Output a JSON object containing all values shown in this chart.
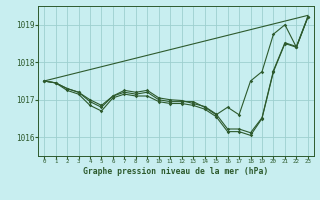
{
  "background_color": "#c8eef0",
  "grid_color": "#9ecfcf",
  "line_color": "#2d5a2d",
  "title": "Graphe pression niveau de la mer (hPa)",
  "xlim": [
    -0.5,
    23.5
  ],
  "ylim": [
    1015.5,
    1019.5
  ],
  "yticks": [
    1016,
    1017,
    1018,
    1019
  ],
  "xticks": [
    0,
    1,
    2,
    3,
    4,
    5,
    6,
    7,
    8,
    9,
    10,
    11,
    12,
    13,
    14,
    15,
    16,
    17,
    18,
    19,
    20,
    21,
    22,
    23
  ],
  "series": [
    {
      "x": [
        0,
        1,
        2,
        3,
        4,
        5,
        6,
        7,
        8,
        9,
        10,
        11,
        12,
        13,
        14,
        15,
        16,
        17,
        18,
        19,
        20,
        21,
        22,
        23
      ],
      "y": [
        1017.5,
        1017.45,
        1017.25,
        1017.15,
        1016.85,
        1016.7,
        1017.05,
        1017.15,
        1017.1,
        1017.1,
        1016.95,
        1016.9,
        1016.9,
        1016.85,
        1016.75,
        1016.55,
        1016.15,
        1016.15,
        1016.05,
        1016.5,
        1017.75,
        1018.5,
        1018.4,
        1019.2
      ],
      "marker": true
    },
    {
      "x": [
        0,
        1,
        2,
        3,
        4,
        5,
        6,
        7,
        8,
        9,
        10,
        11,
        12,
        13,
        14,
        15,
        16,
        17,
        18,
        19,
        20,
        21,
        22,
        23
      ],
      "y": [
        1017.5,
        1017.45,
        1017.3,
        1017.2,
        1016.95,
        1016.8,
        1017.1,
        1017.2,
        1017.15,
        1017.2,
        1017.0,
        1016.95,
        1016.95,
        1016.95,
        1016.8,
        1016.6,
        1016.8,
        1016.6,
        1017.5,
        1017.75,
        1018.75,
        1019.0,
        1018.4,
        1019.2
      ],
      "marker": true
    },
    {
      "x": [
        0,
        23
      ],
      "y": [
        1017.5,
        1019.25
      ],
      "marker": false
    },
    {
      "x": [
        0,
        1,
        2,
        3,
        4,
        5,
        6,
        7,
        8,
        9,
        10,
        11,
        12,
        13,
        14,
        15,
        16,
        17,
        18,
        19,
        20,
        21,
        22,
        23
      ],
      "y": [
        1017.5,
        1017.45,
        1017.3,
        1017.2,
        1017.0,
        1016.85,
        1017.1,
        1017.25,
        1017.2,
        1017.25,
        1017.05,
        1017.0,
        1016.98,
        1016.9,
        1016.82,
        1016.62,
        1016.22,
        1016.22,
        1016.12,
        1016.52,
        1017.78,
        1018.52,
        1018.42,
        1019.22
      ],
      "marker": true
    }
  ]
}
